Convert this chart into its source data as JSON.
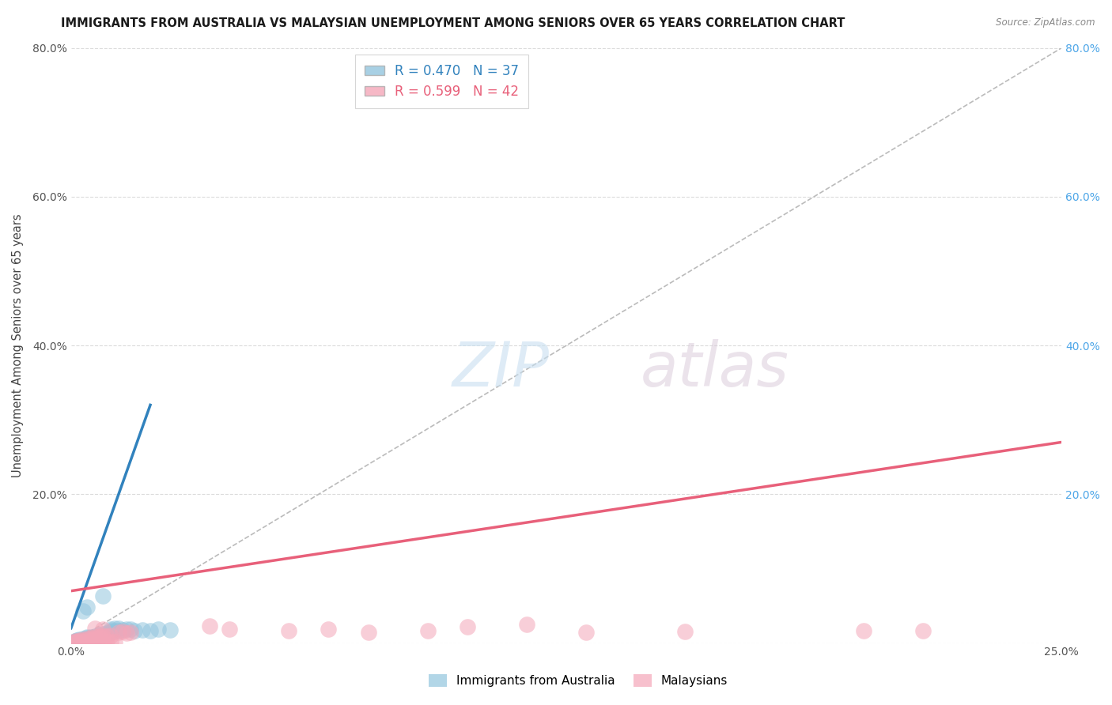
{
  "title": "IMMIGRANTS FROM AUSTRALIA VS MALAYSIAN UNEMPLOYMENT AMONG SENIORS OVER 65 YEARS CORRELATION CHART",
  "source": "Source: ZipAtlas.com",
  "ylabel": "Unemployment Among Seniors over 65 years",
  "legend1_label": "Immigrants from Australia",
  "legend2_label": "Malaysians",
  "R1": "0.470",
  "N1": "37",
  "R2": "0.599",
  "N2": "42",
  "blue_color": "#92c5de",
  "pink_color": "#f4a6b8",
  "blue_line_color": "#3182bd",
  "pink_line_color": "#e8607a",
  "diagonal_color": "#bbbbbb",
  "background_color": "#ffffff",
  "grid_color": "#cccccc",
  "xlim": [
    0.0,
    0.25
  ],
  "ylim": [
    0.0,
    0.8
  ],
  "scatter_blue": [
    [
      0.0005,
      0.001
    ],
    [
      0.001,
      0.002
    ],
    [
      0.001,
      0.003
    ],
    [
      0.0015,
      0.004
    ],
    [
      0.002,
      0.003
    ],
    [
      0.002,
      0.005
    ],
    [
      0.003,
      0.004
    ],
    [
      0.003,
      0.006
    ],
    [
      0.004,
      0.007
    ],
    [
      0.004,
      0.008
    ],
    [
      0.005,
      0.006
    ],
    [
      0.005,
      0.008
    ],
    [
      0.006,
      0.007
    ],
    [
      0.006,
      0.009
    ],
    [
      0.007,
      0.01
    ],
    [
      0.007,
      0.011
    ],
    [
      0.008,
      0.012
    ],
    [
      0.009,
      0.013
    ],
    [
      0.01,
      0.014
    ],
    [
      0.01,
      0.016
    ],
    [
      0.011,
      0.016
    ],
    [
      0.012,
      0.017
    ],
    [
      0.013,
      0.018
    ],
    [
      0.014,
      0.019
    ],
    [
      0.015,
      0.019
    ],
    [
      0.016,
      0.017
    ],
    [
      0.018,
      0.018
    ],
    [
      0.02,
      0.016
    ],
    [
      0.022,
      0.019
    ],
    [
      0.025,
      0.018
    ],
    [
      0.003,
      0.043
    ],
    [
      0.004,
      0.048
    ],
    [
      0.008,
      0.063
    ],
    [
      0.01,
      0.019
    ],
    [
      0.011,
      0.02
    ],
    [
      0.012,
      0.02
    ],
    [
      0.004,
      0.003
    ]
  ],
  "scatter_pink": [
    [
      0.0005,
      0.001
    ],
    [
      0.001,
      0.002
    ],
    [
      0.001,
      0.003
    ],
    [
      0.0015,
      0.002
    ],
    [
      0.002,
      0.003
    ],
    [
      0.002,
      0.004
    ],
    [
      0.003,
      0.003
    ],
    [
      0.003,
      0.005
    ],
    [
      0.004,
      0.004
    ],
    [
      0.004,
      0.006
    ],
    [
      0.005,
      0.005
    ],
    [
      0.005,
      0.007
    ],
    [
      0.006,
      0.006
    ],
    [
      0.006,
      0.008
    ],
    [
      0.007,
      0.007
    ],
    [
      0.007,
      0.009
    ],
    [
      0.008,
      0.008
    ],
    [
      0.008,
      0.01
    ],
    [
      0.009,
      0.009
    ],
    [
      0.01,
      0.01
    ],
    [
      0.01,
      0.002
    ],
    [
      0.011,
      0.002
    ],
    [
      0.012,
      0.014
    ],
    [
      0.013,
      0.015
    ],
    [
      0.014,
      0.013
    ],
    [
      0.015,
      0.014
    ],
    [
      0.006,
      0.02
    ],
    [
      0.008,
      0.019
    ],
    [
      0.035,
      0.023
    ],
    [
      0.04,
      0.019
    ],
    [
      0.055,
      0.016
    ],
    [
      0.065,
      0.019
    ],
    [
      0.075,
      0.014
    ],
    [
      0.09,
      0.016
    ],
    [
      0.1,
      0.022
    ],
    [
      0.115,
      0.025
    ],
    [
      0.13,
      0.014
    ],
    [
      0.155,
      0.015
    ],
    [
      0.2,
      0.016
    ],
    [
      0.215,
      0.016
    ],
    [
      0.005,
      0.004
    ],
    [
      0.009,
      0.003
    ]
  ],
  "blue_line": [
    [
      0.0,
      0.02
    ],
    [
      0.02,
      0.32
    ]
  ],
  "pink_line": [
    [
      0.0,
      0.07
    ],
    [
      0.25,
      0.27
    ]
  ]
}
